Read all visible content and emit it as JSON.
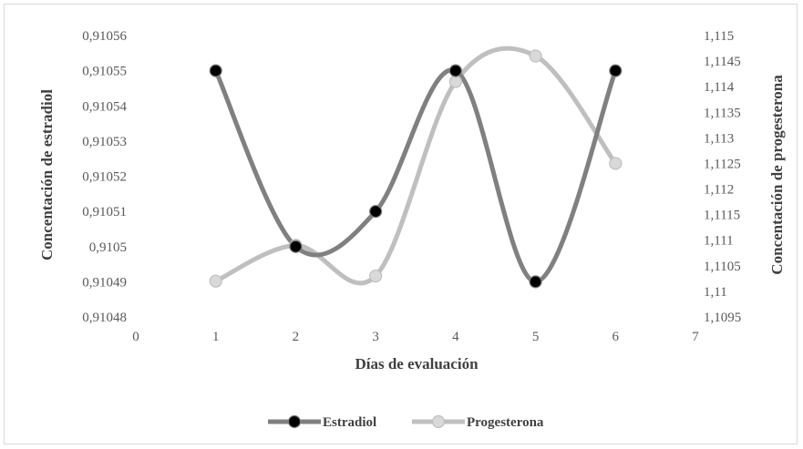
{
  "chart_data": {
    "type": "line",
    "smooth": true,
    "xlabel": "Días de evaluación",
    "ylabel_left": "Concentación de estradiol",
    "ylabel_right": "Concentación de progesterona",
    "x_ticks": [
      "0",
      "1",
      "2",
      "3",
      "4",
      "5",
      "6",
      "7"
    ],
    "xlim": [
      0,
      7
    ],
    "y_left_ticks": [
      "0,91048",
      "0,91049",
      "0,9105",
      "0,91051",
      "0,91052",
      "0,91053",
      "0,91054",
      "0,91055",
      "0,91056"
    ],
    "ylim_left": [
      0.91048,
      0.91056
    ],
    "y_right_ticks": [
      "1,1095",
      "1,11",
      "1,1105",
      "1,111",
      "1,1115",
      "1,112",
      "1,1125",
      "1,113",
      "1,1135",
      "1,114",
      "1,1145",
      "1,115"
    ],
    "ylim_right": [
      1.1095,
      1.115
    ],
    "grid": false,
    "legend_position": "bottom",
    "series": [
      {
        "name": "Estradiol",
        "axis": "left",
        "line_color": "#808080",
        "marker_color": "#000000",
        "x": [
          1,
          2,
          3,
          4,
          5,
          6
        ],
        "y": [
          0.91055,
          0.9105,
          0.91051,
          0.91055,
          0.91049,
          0.91055
        ]
      },
      {
        "name": "Progesterona",
        "axis": "right",
        "line_color": "#bfbfbf",
        "marker_color": "#d9d9d9",
        "x": [
          1,
          2,
          3,
          4,
          5,
          6
        ],
        "y": [
          1.1102,
          1.1109,
          1.1103,
          1.1141,
          1.1146,
          1.1125
        ]
      }
    ]
  }
}
